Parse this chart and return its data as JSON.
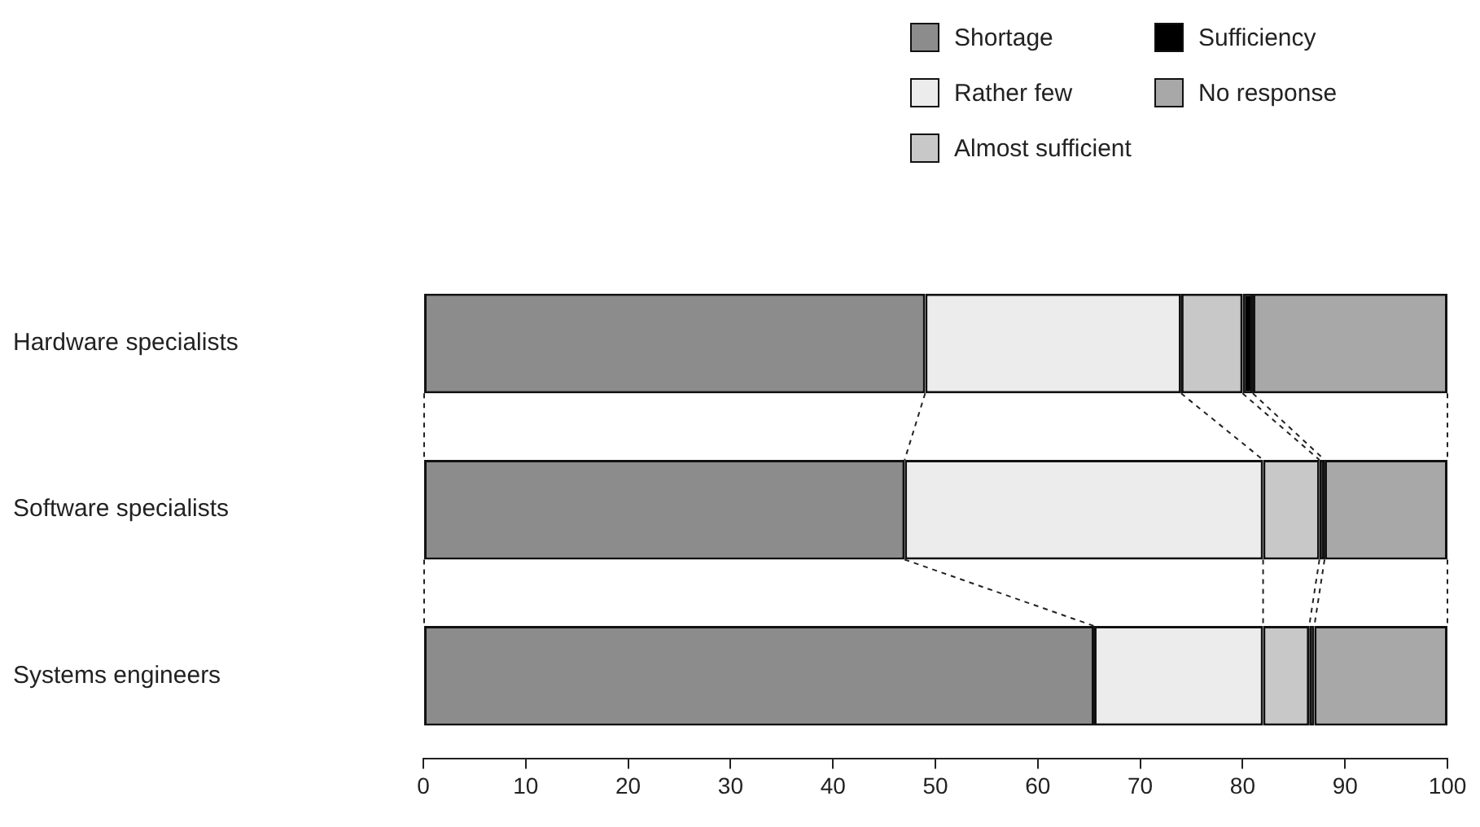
{
  "chart_data": {
    "type": "bar",
    "orientation": "horizontal",
    "stacked": true,
    "legend": "top right",
    "grid": false,
    "categories": [
      "Hardware specialists",
      "Software specialists",
      "Systems engineers"
    ],
    "series": [
      {
        "name": "Shortage",
        "color": "#8c8c8c",
        "values": [
          49,
          47,
          65.5
        ]
      },
      {
        "name": "Rather few",
        "color": "#ececec",
        "values": [
          25,
          35,
          16.5
        ]
      },
      {
        "name": "Almost sufficient",
        "color": "#c8c8c8",
        "values": [
          6,
          5.5,
          4.5
        ]
      },
      {
        "name": "Sufficiency",
        "color": "#000000",
        "values": [
          1,
          0.5,
          0.5
        ]
      },
      {
        "name": "No response",
        "color": "#a8a8a8",
        "values": [
          19,
          12,
          13
        ]
      }
    ],
    "xlim": [
      0,
      100
    ],
    "xticks": [
      0,
      10,
      20,
      30,
      40,
      50,
      60,
      70,
      80,
      90,
      100
    ]
  }
}
